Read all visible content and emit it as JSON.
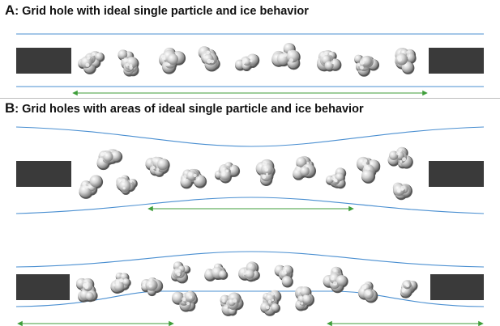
{
  "panels": [
    {
      "letter": "A",
      "separator": ":",
      "title": "Grid hole with ideal single particle and ice behavior"
    },
    {
      "letter": "B",
      "separator": ":",
      "title": "Grid holes with areas of ideal single particle and ice behavior"
    }
  ],
  "colors": {
    "ice_surface": "#4a8fd1",
    "ideal_region": "#3f9e3a",
    "grid_support": "#3a3a3a",
    "particle_fill": "#d4d4d4",
    "particle_shade": "#8f8f8f",
    "divider": "#bdbdbd"
  },
  "icons": {
    "particle": "protein-particle-icon",
    "support": "grid-bar-icon"
  }
}
